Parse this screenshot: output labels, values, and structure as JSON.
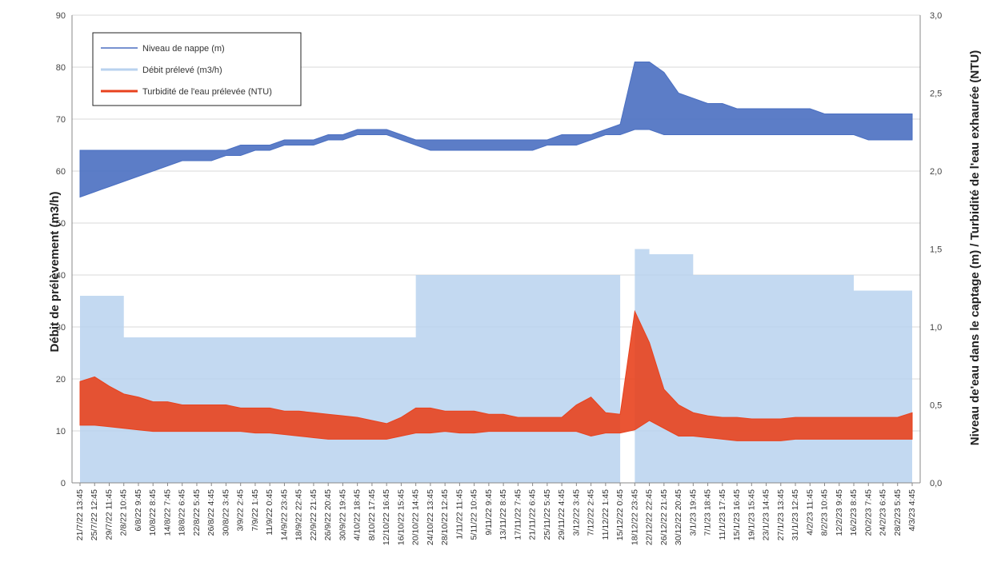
{
  "chart_data": {
    "type": "line",
    "title": "",
    "ylabel_left": "Débit de prélèvement (m3/h)",
    "ylabel_right": "Niveau de'eau dans le captage (m) / Turbidité de l'eau exhaurée (NTU)",
    "ylim_left": [
      0,
      90
    ],
    "ylim_right": [
      0,
      3
    ],
    "yticks_left": [
      "0",
      "10",
      "20",
      "30",
      "40",
      "50",
      "60",
      "70",
      "80",
      "90"
    ],
    "yticks_right": [
      "0,0",
      "0,5",
      "1,0",
      "1,5",
      "2,0",
      "2,5",
      "3,0"
    ],
    "grid": true,
    "legend_position": "top-left",
    "x": [
      "21/7/22 13:45",
      "25/7/22 12:45",
      "29/7/22 11:45",
      "2/8/22 10:45",
      "6/8/22 9:45",
      "10/8/22 8:45",
      "14/8/22 7:45",
      "18/8/22 6:45",
      "22/8/22 5:45",
      "26/8/22 4:45",
      "30/8/22 3:45",
      "3/9/22 2:45",
      "7/9/22 1:45",
      "11/9/22 0:45",
      "14/9/22 23:45",
      "18/9/22 22:45",
      "22/9/22 21:45",
      "26/9/22 20:45",
      "30/9/22 19:45",
      "4/10/22 18:45",
      "8/10/22 17:45",
      "12/10/22 16:45",
      "16/10/22 15:45",
      "20/10/22 14:45",
      "24/10/22 13:45",
      "28/10/22 12:45",
      "1/11/22 11:45",
      "5/11/22 10:45",
      "9/11/22 9:45",
      "13/11/22 8:45",
      "17/11/22 7:45",
      "21/11/22 6:45",
      "25/11/22 5:45",
      "29/11/22 4:45",
      "3/12/22 3:45",
      "7/12/22 2:45",
      "11/12/22 1:45",
      "15/12/22 0:45",
      "18/12/22 23:45",
      "22/12/22 22:45",
      "26/12/22 21:45",
      "30/12/22 20:45",
      "3/1/23 19:45",
      "7/1/23 18:45",
      "11/1/23 17:45",
      "15/1/23 16:45",
      "19/1/23 15:45",
      "23/1/23 14:45",
      "27/1/23 13:45",
      "31/1/23 12:45",
      "4/2/23 11:45",
      "8/2/23 10:45",
      "12/2/23 9:45",
      "16/2/23 8:45",
      "20/2/23 7:45",
      "24/2/23 6:45",
      "28/2/23 5:45",
      "4/3/23 4:45"
    ],
    "series": [
      {
        "name": "Niveau de nappe (m)",
        "axis": "left",
        "color": "#4a6fc1",
        "low": [
          55,
          56,
          57,
          58,
          59,
          60,
          61,
          62,
          62,
          62,
          63,
          63,
          64,
          64,
          65,
          65,
          65,
          66,
          66,
          67,
          67,
          67,
          66,
          65,
          64,
          64,
          64,
          64,
          64,
          64,
          64,
          64,
          65,
          65,
          65,
          66,
          67,
          67,
          68,
          68,
          67,
          67,
          67,
          67,
          67,
          67,
          67,
          67,
          67,
          67,
          67,
          67,
          67,
          67,
          66,
          66,
          66,
          66
        ],
        "high": [
          64,
          64,
          64,
          64,
          64,
          64,
          64,
          64,
          64,
          64,
          64,
          65,
          65,
          65,
          66,
          66,
          66,
          67,
          67,
          68,
          68,
          68,
          67,
          66,
          66,
          66,
          66,
          66,
          66,
          66,
          66,
          66,
          66,
          67,
          67,
          67,
          68,
          69,
          81,
          81,
          79,
          75,
          74,
          73,
          73,
          72,
          72,
          72,
          72,
          72,
          72,
          71,
          71,
          71,
          71,
          71,
          71,
          71
        ]
      },
      {
        "name": "Débit prélevé (m3/h)",
        "axis": "left",
        "color": "#b9d2ef",
        "values": [
          36,
          36,
          36,
          28,
          28,
          28,
          28,
          28,
          28,
          28,
          28,
          28,
          28,
          28,
          28,
          28,
          28,
          28,
          28,
          28,
          28,
          28,
          28,
          40,
          40,
          40,
          40,
          40,
          40,
          40,
          40,
          40,
          40,
          40,
          40,
          40,
          40,
          0,
          45,
          44,
          44,
          44,
          40,
          40,
          40,
          40,
          40,
          40,
          40,
          40,
          40,
          40,
          40,
          37,
          37,
          37,
          37,
          37
        ]
      },
      {
        "name": "Turbidité de l'eau prélevée (NTU)",
        "axis": "right",
        "color": "#e8421e",
        "low": [
          0.37,
          0.37,
          0.36,
          0.35,
          0.34,
          0.33,
          0.33,
          0.33,
          0.33,
          0.33,
          0.33,
          0.33,
          0.32,
          0.32,
          0.31,
          0.3,
          0.29,
          0.28,
          0.28,
          0.28,
          0.28,
          0.28,
          0.3,
          0.32,
          0.32,
          0.33,
          0.32,
          0.32,
          0.33,
          0.33,
          0.33,
          0.33,
          0.33,
          0.33,
          0.33,
          0.3,
          0.32,
          0.32,
          0.34,
          0.4,
          0.35,
          0.3,
          0.3,
          0.29,
          0.28,
          0.27,
          0.27,
          0.27,
          0.27,
          0.28,
          0.28,
          0.28,
          0.28,
          0.28,
          0.28,
          0.28,
          0.28,
          0.28
        ],
        "high": [
          0.65,
          0.68,
          0.62,
          0.57,
          0.55,
          0.52,
          0.52,
          0.5,
          0.5,
          0.5,
          0.5,
          0.48,
          0.48,
          0.48,
          0.46,
          0.46,
          0.45,
          0.44,
          0.43,
          0.42,
          0.4,
          0.38,
          0.42,
          0.48,
          0.48,
          0.46,
          0.46,
          0.46,
          0.44,
          0.44,
          0.42,
          0.42,
          0.42,
          0.42,
          0.5,
          0.55,
          0.45,
          0.44,
          1.1,
          0.9,
          0.6,
          0.5,
          0.45,
          0.43,
          0.42,
          0.42,
          0.41,
          0.41,
          0.41,
          0.42,
          0.42,
          0.42,
          0.42,
          0.42,
          0.42,
          0.42,
          0.42,
          0.45
        ]
      }
    ]
  }
}
